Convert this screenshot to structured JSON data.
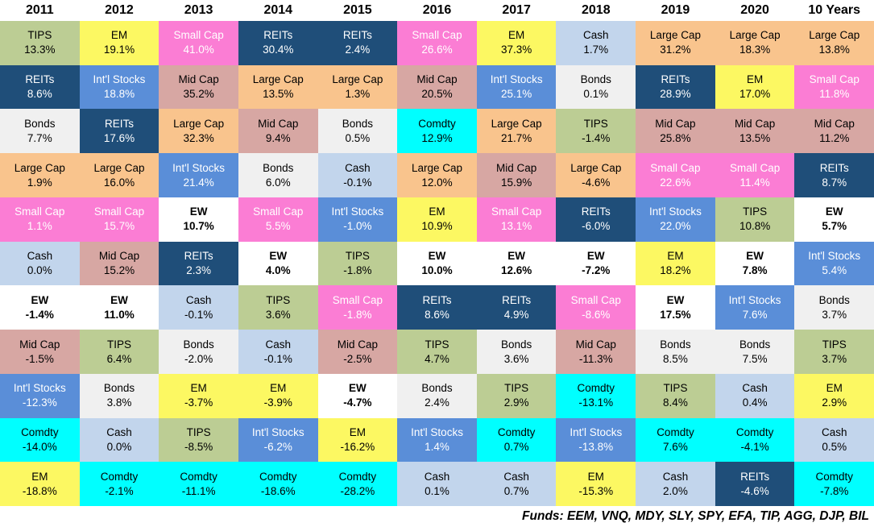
{
  "chart_data": {
    "type": "table",
    "description_of_layout": "asset class returns quilt, each column ranked best to worst",
    "columns": [
      {
        "label": "2011",
        "entries": [
          {
            "asset": "TIPS",
            "value": 13.3
          },
          {
            "asset": "REITs",
            "value": 8.6
          },
          {
            "asset": "Bonds",
            "value": 7.7
          },
          {
            "asset": "Large Cap",
            "value": 1.9
          },
          {
            "asset": "Small Cap",
            "value": 1.1
          },
          {
            "asset": "Cash",
            "value": 0.0
          },
          {
            "asset": "EW",
            "value": -1.4
          },
          {
            "asset": "Mid Cap",
            "value": -1.5
          },
          {
            "asset": "Int'l Stocks",
            "value": -12.3
          },
          {
            "asset": "Comdty",
            "value": -14.0
          },
          {
            "asset": "EM",
            "value": -18.8
          }
        ]
      },
      {
        "label": "2012",
        "entries": [
          {
            "asset": "EM",
            "value": 19.1
          },
          {
            "asset": "Int'l Stocks",
            "value": 18.8
          },
          {
            "asset": "REITs",
            "value": 17.6
          },
          {
            "asset": "Large Cap",
            "value": 16.0
          },
          {
            "asset": "Small Cap",
            "value": 15.7
          },
          {
            "asset": "Mid Cap",
            "value": 15.2
          },
          {
            "asset": "EW",
            "value": 11.0
          },
          {
            "asset": "TIPS",
            "value": 6.4
          },
          {
            "asset": "Bonds",
            "value": 3.8
          },
          {
            "asset": "Cash",
            "value": 0.0
          },
          {
            "asset": "Comdty",
            "value": -2.1
          }
        ]
      },
      {
        "label": "2013",
        "entries": [
          {
            "asset": "Small Cap",
            "value": 41.0
          },
          {
            "asset": "Mid Cap",
            "value": 35.2
          },
          {
            "asset": "Large Cap",
            "value": 32.3
          },
          {
            "asset": "Int'l Stocks",
            "value": 21.4
          },
          {
            "asset": "EW",
            "value": 10.7
          },
          {
            "asset": "REITs",
            "value": 2.3
          },
          {
            "asset": "Cash",
            "value": -0.1
          },
          {
            "asset": "Bonds",
            "value": -2.0
          },
          {
            "asset": "EM",
            "value": -3.7
          },
          {
            "asset": "TIPS",
            "value": -8.5
          },
          {
            "asset": "Comdty",
            "value": -11.1
          }
        ]
      },
      {
        "label": "2014",
        "entries": [
          {
            "asset": "REITs",
            "value": 30.4
          },
          {
            "asset": "Large Cap",
            "value": 13.5
          },
          {
            "asset": "Mid Cap",
            "value": 9.4
          },
          {
            "asset": "Bonds",
            "value": 6.0
          },
          {
            "asset": "Small Cap",
            "value": 5.5
          },
          {
            "asset": "EW",
            "value": 4.0
          },
          {
            "asset": "TIPS",
            "value": 3.6
          },
          {
            "asset": "Cash",
            "value": -0.1
          },
          {
            "asset": "EM",
            "value": -3.9
          },
          {
            "asset": "Int'l Stocks",
            "value": -6.2
          },
          {
            "asset": "Comdty",
            "value": -18.6
          }
        ]
      },
      {
        "label": "2015",
        "entries": [
          {
            "asset": "REITs",
            "value": 2.4
          },
          {
            "asset": "Large Cap",
            "value": 1.3
          },
          {
            "asset": "Bonds",
            "value": 0.5
          },
          {
            "asset": "Cash",
            "value": -0.1
          },
          {
            "asset": "Int'l Stocks",
            "value": -1.0
          },
          {
            "asset": "TIPS",
            "value": -1.8
          },
          {
            "asset": "Small Cap",
            "value": -1.8
          },
          {
            "asset": "Mid Cap",
            "value": -2.5
          },
          {
            "asset": "EW",
            "value": -4.7
          },
          {
            "asset": "EM",
            "value": -16.2
          },
          {
            "asset": "Comdty",
            "value": -28.2
          }
        ]
      },
      {
        "label": "2016",
        "entries": [
          {
            "asset": "Small Cap",
            "value": 26.6
          },
          {
            "asset": "Mid Cap",
            "value": 20.5
          },
          {
            "asset": "Comdty",
            "value": 12.9
          },
          {
            "asset": "Large Cap",
            "value": 12.0
          },
          {
            "asset": "EM",
            "value": 10.9
          },
          {
            "asset": "EW",
            "value": 10.0
          },
          {
            "asset": "REITs",
            "value": 8.6
          },
          {
            "asset": "TIPS",
            "value": 4.7
          },
          {
            "asset": "Bonds",
            "value": 2.4
          },
          {
            "asset": "Int'l Stocks",
            "value": 1.4
          },
          {
            "asset": "Cash",
            "value": 0.1
          }
        ]
      },
      {
        "label": "2017",
        "entries": [
          {
            "asset": "EM",
            "value": 37.3
          },
          {
            "asset": "Int'l Stocks",
            "value": 25.1
          },
          {
            "asset": "Large Cap",
            "value": 21.7
          },
          {
            "asset": "Mid Cap",
            "value": 15.9
          },
          {
            "asset": "Small Cap",
            "value": 13.1
          },
          {
            "asset": "EW",
            "value": 12.6
          },
          {
            "asset": "REITs",
            "value": 4.9
          },
          {
            "asset": "Bonds",
            "value": 3.6
          },
          {
            "asset": "TIPS",
            "value": 2.9
          },
          {
            "asset": "Comdty",
            "value": 0.7
          },
          {
            "asset": "Cash",
            "value": 0.7
          }
        ]
      },
      {
        "label": "2018",
        "entries": [
          {
            "asset": "Cash",
            "value": 1.7
          },
          {
            "asset": "Bonds",
            "value": 0.1
          },
          {
            "asset": "TIPS",
            "value": -1.4
          },
          {
            "asset": "Large Cap",
            "value": -4.6
          },
          {
            "asset": "REITs",
            "value": -6.0
          },
          {
            "asset": "EW",
            "value": -7.2
          },
          {
            "asset": "Small Cap",
            "value": -8.6
          },
          {
            "asset": "Mid Cap",
            "value": -11.3
          },
          {
            "asset": "Comdty",
            "value": -13.1
          },
          {
            "asset": "Int'l Stocks",
            "value": -13.8
          },
          {
            "asset": "EM",
            "value": -15.3
          }
        ]
      },
      {
        "label": "2019",
        "entries": [
          {
            "asset": "Large Cap",
            "value": 31.2
          },
          {
            "asset": "REITs",
            "value": 28.9
          },
          {
            "asset": "Mid Cap",
            "value": 25.8
          },
          {
            "asset": "Small Cap",
            "value": 22.6
          },
          {
            "asset": "Int'l Stocks",
            "value": 22.0
          },
          {
            "asset": "EM",
            "value": 18.2
          },
          {
            "asset": "EW",
            "value": 17.5
          },
          {
            "asset": "Bonds",
            "value": 8.5
          },
          {
            "asset": "TIPS",
            "value": 8.4
          },
          {
            "asset": "Comdty",
            "value": 7.6
          },
          {
            "asset": "Cash",
            "value": 2.0
          }
        ]
      },
      {
        "label": "2020",
        "entries": [
          {
            "asset": "Large Cap",
            "value": 18.3
          },
          {
            "asset": "EM",
            "value": 17.0
          },
          {
            "asset": "Mid Cap",
            "value": 13.5
          },
          {
            "asset": "Small Cap",
            "value": 11.4
          },
          {
            "asset": "TIPS",
            "value": 10.8
          },
          {
            "asset": "EW",
            "value": 7.8
          },
          {
            "asset": "Int'l Stocks",
            "value": 7.6
          },
          {
            "asset": "Bonds",
            "value": 7.5
          },
          {
            "asset": "Cash",
            "value": 0.4
          },
          {
            "asset": "Comdty",
            "value": -4.1
          },
          {
            "asset": "REITs",
            "value": -4.6
          }
        ]
      },
      {
        "label": "10 Years",
        "entries": [
          {
            "asset": "Large Cap",
            "value": 13.8
          },
          {
            "asset": "Small Cap",
            "value": 11.8
          },
          {
            "asset": "Mid Cap",
            "value": 11.2
          },
          {
            "asset": "REITs",
            "value": 8.7
          },
          {
            "asset": "EW",
            "value": 5.7
          },
          {
            "asset": "Int'l Stocks",
            "value": 5.4
          },
          {
            "asset": "Bonds",
            "value": 3.7
          },
          {
            "asset": "TIPS",
            "value": 3.7
          },
          {
            "asset": "EM",
            "value": 2.9
          },
          {
            "asset": "Cash",
            "value": 0.5
          },
          {
            "asset": "Comdty",
            "value": -7.8
          }
        ]
      }
    ]
  },
  "colors": {
    "TIPS": {
      "bg": "#bccd94",
      "fg": "#000000"
    },
    "EM": {
      "bg": "#fcf862",
      "fg": "#000000"
    },
    "Small Cap": {
      "bg": "#fb7dd4",
      "fg": "#ffffff"
    },
    "REITs": {
      "bg": "#1f4e79",
      "fg": "#ffffff"
    },
    "Int'l Stocks": {
      "bg": "#5a8ed8",
      "fg": "#ffffff"
    },
    "Mid Cap": {
      "bg": "#d7a7a3",
      "fg": "#000000"
    },
    "Large Cap": {
      "bg": "#f9c48d",
      "fg": "#000000"
    },
    "Bonds": {
      "bg": "#f0f0f0",
      "fg": "#000000"
    },
    "Cash": {
      "bg": "#c2d5ec",
      "fg": "#000000"
    },
    "Comdty": {
      "bg": "#00ffff",
      "fg": "#000000"
    },
    "EW": {
      "bg": "#ffffff",
      "fg": "#000000"
    }
  },
  "footer": {
    "funds_label": "Funds: EEM, VNQ, MDY, SLY, SPY, EFA, TIP, AGG, DJP, BIL"
  }
}
